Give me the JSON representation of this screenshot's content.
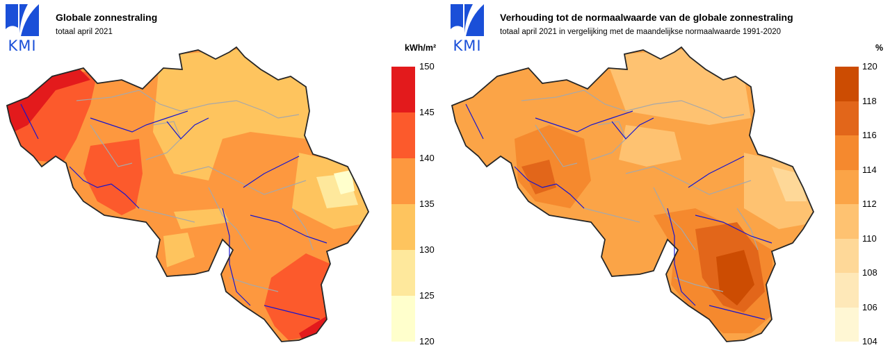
{
  "logo": {
    "text": "KMI",
    "icon": "kmi-logo-icon",
    "color": "#1a4fd8"
  },
  "left": {
    "title": "Globale zonnestraling",
    "subtitle": "totaal april 2021",
    "unit": "kWh/m²",
    "legend": {
      "ticks": [
        "150",
        "145",
        "140",
        "135",
        "130",
        "125",
        "120"
      ],
      "colors": [
        "#e31a1c",
        "#fc5a2c",
        "#fd983f",
        "#fec45e",
        "#fee89c",
        "#ffffcc"
      ]
    }
  },
  "right": {
    "title": "Verhouding tot de normaalwaarde van de globale zonnestraling",
    "subtitle": "totaal april 2021 in vergelijking met de maandelijkse normaalwaarde 1991-2020",
    "unit": "%",
    "legend": {
      "ticks": [
        "120",
        "118",
        "116",
        "114",
        "112",
        "110",
        "108",
        "106",
        "104"
      ],
      "colors": [
        "#cc4c02",
        "#e2661a",
        "#f5892e",
        "#fba447",
        "#fec271",
        "#fed898",
        "#fee8b8",
        "#fff7d4"
      ]
    }
  }
}
